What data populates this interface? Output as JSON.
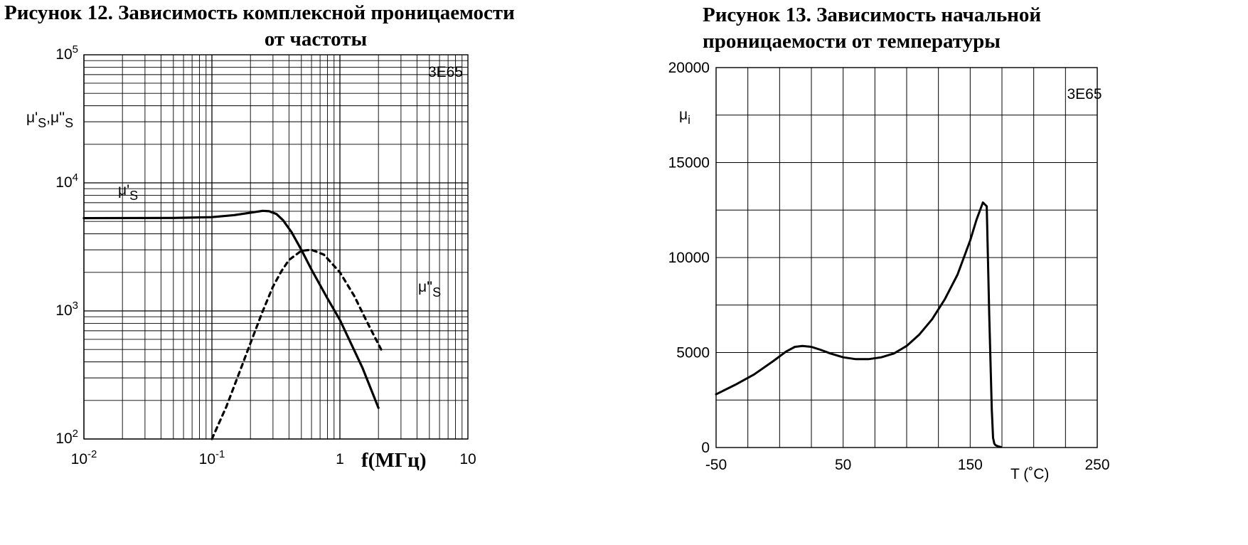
{
  "titles": {
    "fig12_line1": "Рисунок 12. Зависимость комплексной проницаемости",
    "fig12_line2": "от частоты",
    "fig13": "Рисунок 13. Зависимость начальной проницаемости от температуры"
  },
  "chart_data": [
    {
      "type": "line",
      "xscale": "log",
      "yscale": "log",
      "xlim": [
        0.01,
        10
      ],
      "ylim": [
        100,
        100000
      ],
      "grid": true,
      "xticks": [
        {
          "v": 0.01,
          "base": "10",
          "exp": "-2"
        },
        {
          "v": 0.1,
          "base": "10",
          "exp": "-1"
        },
        {
          "v": 1,
          "base": "1",
          "exp": ""
        },
        {
          "v": 10,
          "base": "10",
          "exp": ""
        }
      ],
      "yticks": [
        {
          "v": 100,
          "base": "10",
          "exp": "2"
        },
        {
          "v": 1000,
          "base": "10",
          "exp": "3"
        },
        {
          "v": 10000,
          "base": "10",
          "exp": "4"
        },
        {
          "v": 100000,
          "base": "10",
          "exp": "5"
        }
      ],
      "xlabel": "f(МГц)",
      "ylabel": {
        "mu1": "μ'",
        "sub1": "S",
        "sep": ",",
        "mu2": "μ''",
        "sub2": "S"
      },
      "material": "3E65",
      "series": [
        {
          "label": {
            "mu": "μ'",
            "sub": "S"
          },
          "style": "solid",
          "x": [
            0.01,
            0.05,
            0.1,
            0.15,
            0.2,
            0.25,
            0.28,
            0.32,
            0.36,
            0.42,
            0.5,
            0.6,
            0.8,
            1,
            1.5,
            2
          ],
          "y": [
            5300,
            5320,
            5400,
            5600,
            5850,
            6050,
            6000,
            5700,
            5100,
            4100,
            3000,
            2100,
            1250,
            850,
            360,
            175
          ]
        },
        {
          "label": {
            "mu": "μ''",
            "sub": "S"
          },
          "style": "dashed",
          "x": [
            0.1,
            0.13,
            0.16,
            0.2,
            0.25,
            0.3,
            0.35,
            0.4,
            0.5,
            0.6,
            0.75,
            1,
            1.3,
            1.6,
            2.1
          ],
          "y": [
            100,
            180,
            310,
            560,
            1000,
            1550,
            2050,
            2500,
            2950,
            3000,
            2750,
            2000,
            1300,
            850,
            500
          ]
        }
      ]
    },
    {
      "type": "line",
      "xlim": [
        -50,
        250
      ],
      "ylim": [
        0,
        20000
      ],
      "grid": true,
      "xticks": [
        -50,
        50,
        150,
        250
      ],
      "yticks": [
        0,
        5000,
        10000,
        15000,
        20000
      ],
      "xlabel": "T  (˚C)",
      "ylabel": {
        "mu": "μ",
        "sub": "i"
      },
      "material": "3E65",
      "series": [
        {
          "name": "",
          "style": "solid",
          "x": [
            -50,
            -35,
            -20,
            -5,
            5,
            12,
            18,
            25,
            32,
            40,
            50,
            60,
            70,
            80,
            90,
            100,
            110,
            120,
            130,
            140,
            150,
            155,
            160,
            163,
            165,
            167,
            168,
            169,
            170,
            172,
            174
          ],
          "y": [
            2800,
            3300,
            3850,
            4550,
            5050,
            5300,
            5350,
            5300,
            5150,
            4950,
            4750,
            4650,
            4650,
            4750,
            4950,
            5350,
            5950,
            6750,
            7800,
            9100,
            10900,
            12000,
            12900,
            12700,
            7000,
            2000,
            500,
            200,
            120,
            60,
            30
          ]
        }
      ]
    }
  ]
}
